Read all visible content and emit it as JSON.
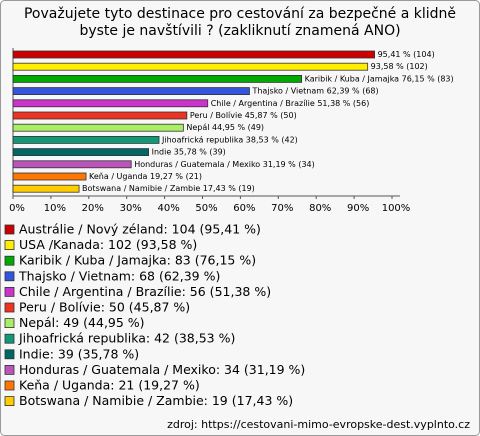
{
  "chart_data": {
    "type": "hbar",
    "title": "Považujete tyto destinace pro cestování za bezpečné a klidně byste je navštívili ? (zakliknutí znamená ANO)",
    "categories": [
      "Austrálie / Nový zéland: 104 (95,41 %)",
      "USA /Kanada: 102 (93,58 %)",
      "Karibik / Kuba / Jamajka: 83 (76,15 %)",
      "Thajsko / Vietnam: 68 (62,39 %)",
      "Chile / Argentina / Brazílie: 56 (51,38 %)",
      "Peru / Bolívie: 50 (45,87 %)",
      "Nepál: 49 (44,95 %)",
      "Jihoafrická republika: 42 (38,53 %)",
      "Indie: 39 (35,78 %)",
      "Honduras / Guatemala / Mexiko: 34 (31,19 %)",
      "Keňa / Uganda: 21 (19,27 %)",
      "Botswana / Namibie / Zambie: 19 (17,43 %)"
    ],
    "values": [
      95.41,
      93.58,
      76.15,
      62.39,
      51.38,
      45.87,
      44.95,
      38.53,
      35.78,
      31.19,
      19.27,
      17.43
    ],
    "value_labels": [
      "95,41 % (104)",
      "93,58 % (102)",
      "Karibik / Kuba / Jamajka 76,15 % (83)",
      "Thajsko / Vietnam 62,39 % (68)",
      "Chile / Argentina / Brazílie 51,38 % (56)",
      "Peru / Bolívie 45,87 % (50)",
      "Nepál 44,95 % (49)",
      "Jihoafrická republika 38,53 % (42)",
      "Indie 35,78 % (39)",
      "Honduras / Guatemala / Mexiko 31,19 % (34)",
      "Keňa / Uganda 19,27 % (21)",
      "Botswana / Namibie / Zambie 17,43 % (19)"
    ],
    "colors": [
      "#cc0000",
      "#ffee00",
      "#00aa00",
      "#3355dd",
      "#cc33cc",
      "#ee3322",
      "#aaee66",
      "#119977",
      "#006666",
      "#bb55bb",
      "#ff7700",
      "#ffcc00"
    ],
    "xlim": [
      0,
      100
    ],
    "xticks": [
      {
        "value": 0,
        "label": "0%"
      },
      {
        "value": 10,
        "label": "10%"
      },
      {
        "value": 20,
        "label": "20%"
      },
      {
        "value": 30,
        "label": "30%"
      },
      {
        "value": 40,
        "label": "40%"
      },
      {
        "value": 50,
        "label": "50%"
      },
      {
        "value": 60,
        "label": "60%"
      },
      {
        "value": 70,
        "label": "70%"
      },
      {
        "value": 80,
        "label": "80%"
      },
      {
        "value": 90,
        "label": "90%"
      },
      {
        "value": 100,
        "label": "100%"
      }
    ],
    "source": "zdroj: https://cestovani-mimo-evropske-dest.vyplnto.cz"
  }
}
